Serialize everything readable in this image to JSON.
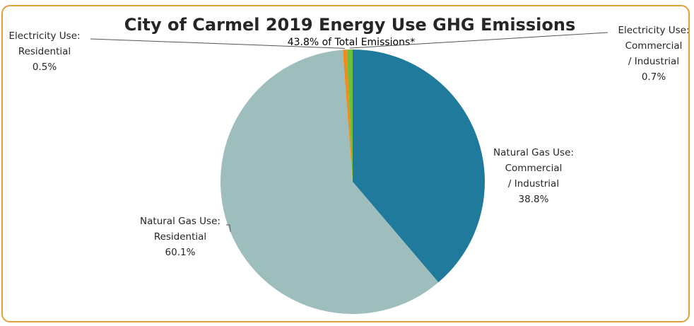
{
  "chart_data": {
    "type": "pie",
    "title": "City of Carmel 2019 Energy Use GHG Emissions",
    "subtitle": "43.8% of Total Emissions*",
    "slices": [
      {
        "label_lines": [
          "Natural Gas Use:",
          "Commercial",
          "/ Industrial"
        ],
        "value_label": "38.8%",
        "value": 38.8,
        "color": "#1F7A9C"
      },
      {
        "label_lines": [
          "Natural Gas Use:",
          "Residential"
        ],
        "value_label": "60.1%",
        "value": 60.1,
        "color": "#9EBEBD"
      },
      {
        "label_lines": [
          "Electricity Use:",
          "Residential"
        ],
        "value_label": "0.5%",
        "value": 0.5,
        "color": "#F08C1E"
      },
      {
        "label_lines": [
          "Electricity Use:",
          "Commercial",
          "/ Industrial"
        ],
        "value_label": "0.7%",
        "value": 0.7,
        "color": "#6BBF3A"
      }
    ],
    "legend": "none"
  },
  "colors": {
    "border": "#E0A03A"
  }
}
